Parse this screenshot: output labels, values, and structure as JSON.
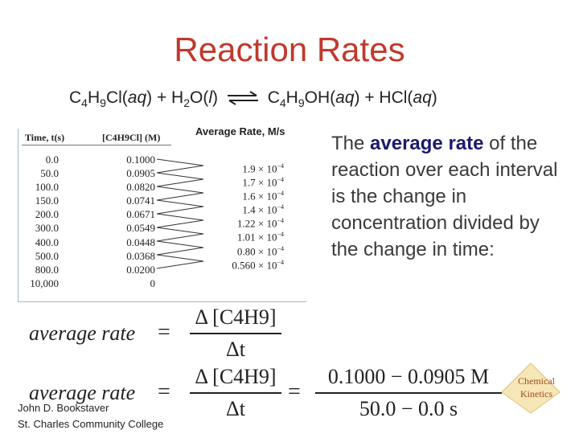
{
  "slide": {
    "title": "Reaction Rates",
    "equation": {
      "left": [
        "C",
        "4",
        "H",
        "9",
        "Cl(",
        "aq",
        ") + H",
        "2",
        "O(",
        "l",
        ")"
      ],
      "right": [
        "C",
        "4",
        "H",
        "9",
        "OH(",
        "aq",
        ") + HCl(",
        "aq",
        ")"
      ]
    }
  },
  "table": {
    "header_time": "Time, t(s)",
    "header_conc": "[C4H9Cl] (M)",
    "header_rate": "Average Rate, M/s",
    "time": [
      "0.0",
      "50.0",
      "100.0",
      "150.0",
      "200.0",
      "300.0",
      "400.0",
      "500.0",
      "800.0",
      "10,000"
    ],
    "conc": [
      "0.1000",
      "0.0905",
      "0.0820",
      "0.0741",
      "0.0671",
      "0.0549",
      "0.0448",
      "0.0368",
      "0.0200",
      "0"
    ],
    "rate_mantissa": [
      "1.9 × 10",
      "1.7 × 10",
      "1.6 × 10",
      "1.4 × 10",
      "1.22 × 10",
      "1.01 × 10",
      "0.80 × 10",
      "0.560 × 10"
    ],
    "rate_exponent": "−4"
  },
  "explanation": {
    "prefix": "The ",
    "bold": "average rate",
    "suffix": " of the reaction over each interval is the change in concentration divided by the change in time:"
  },
  "formulas": {
    "lhs": "average rate",
    "equals": "=",
    "delta_num": "Δ [C4H9]",
    "delta_den": "Δt",
    "values_num": "0.1000 − 0.0905  M",
    "values_den": "50.0 − 0.0  s"
  },
  "credits": {
    "author": "John D. Bookstaver",
    "college": "St. Charles Community College"
  },
  "logo": {
    "line1": "Chemical",
    "line2": "Kinetics"
  }
}
